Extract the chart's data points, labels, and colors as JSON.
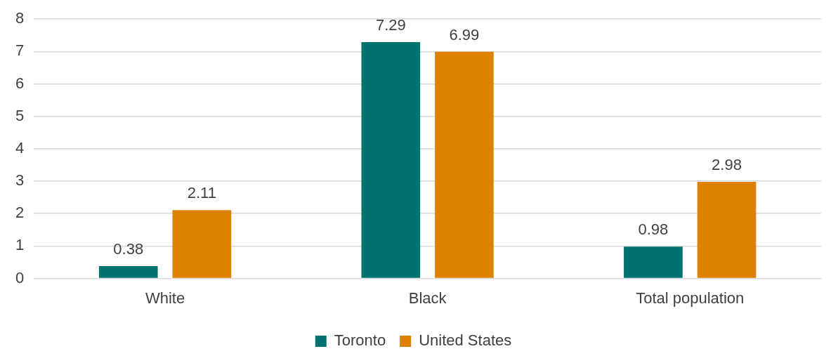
{
  "chart_data": {
    "type": "bar",
    "categories": [
      "White",
      "Black",
      "Total population"
    ],
    "series": [
      {
        "name": "Toronto",
        "color": "#00736f",
        "values": [
          0.38,
          7.29,
          0.98
        ]
      },
      {
        "name": "United States",
        "color": "#de8000",
        "values": [
          2.11,
          6.99,
          2.98
        ]
      }
    ],
    "ylim": [
      0,
      8
    ],
    "yticks": [
      0,
      1,
      2,
      3,
      4,
      5,
      6,
      7,
      8
    ],
    "grid": "y",
    "legend": "bottom",
    "data_labels": true
  }
}
